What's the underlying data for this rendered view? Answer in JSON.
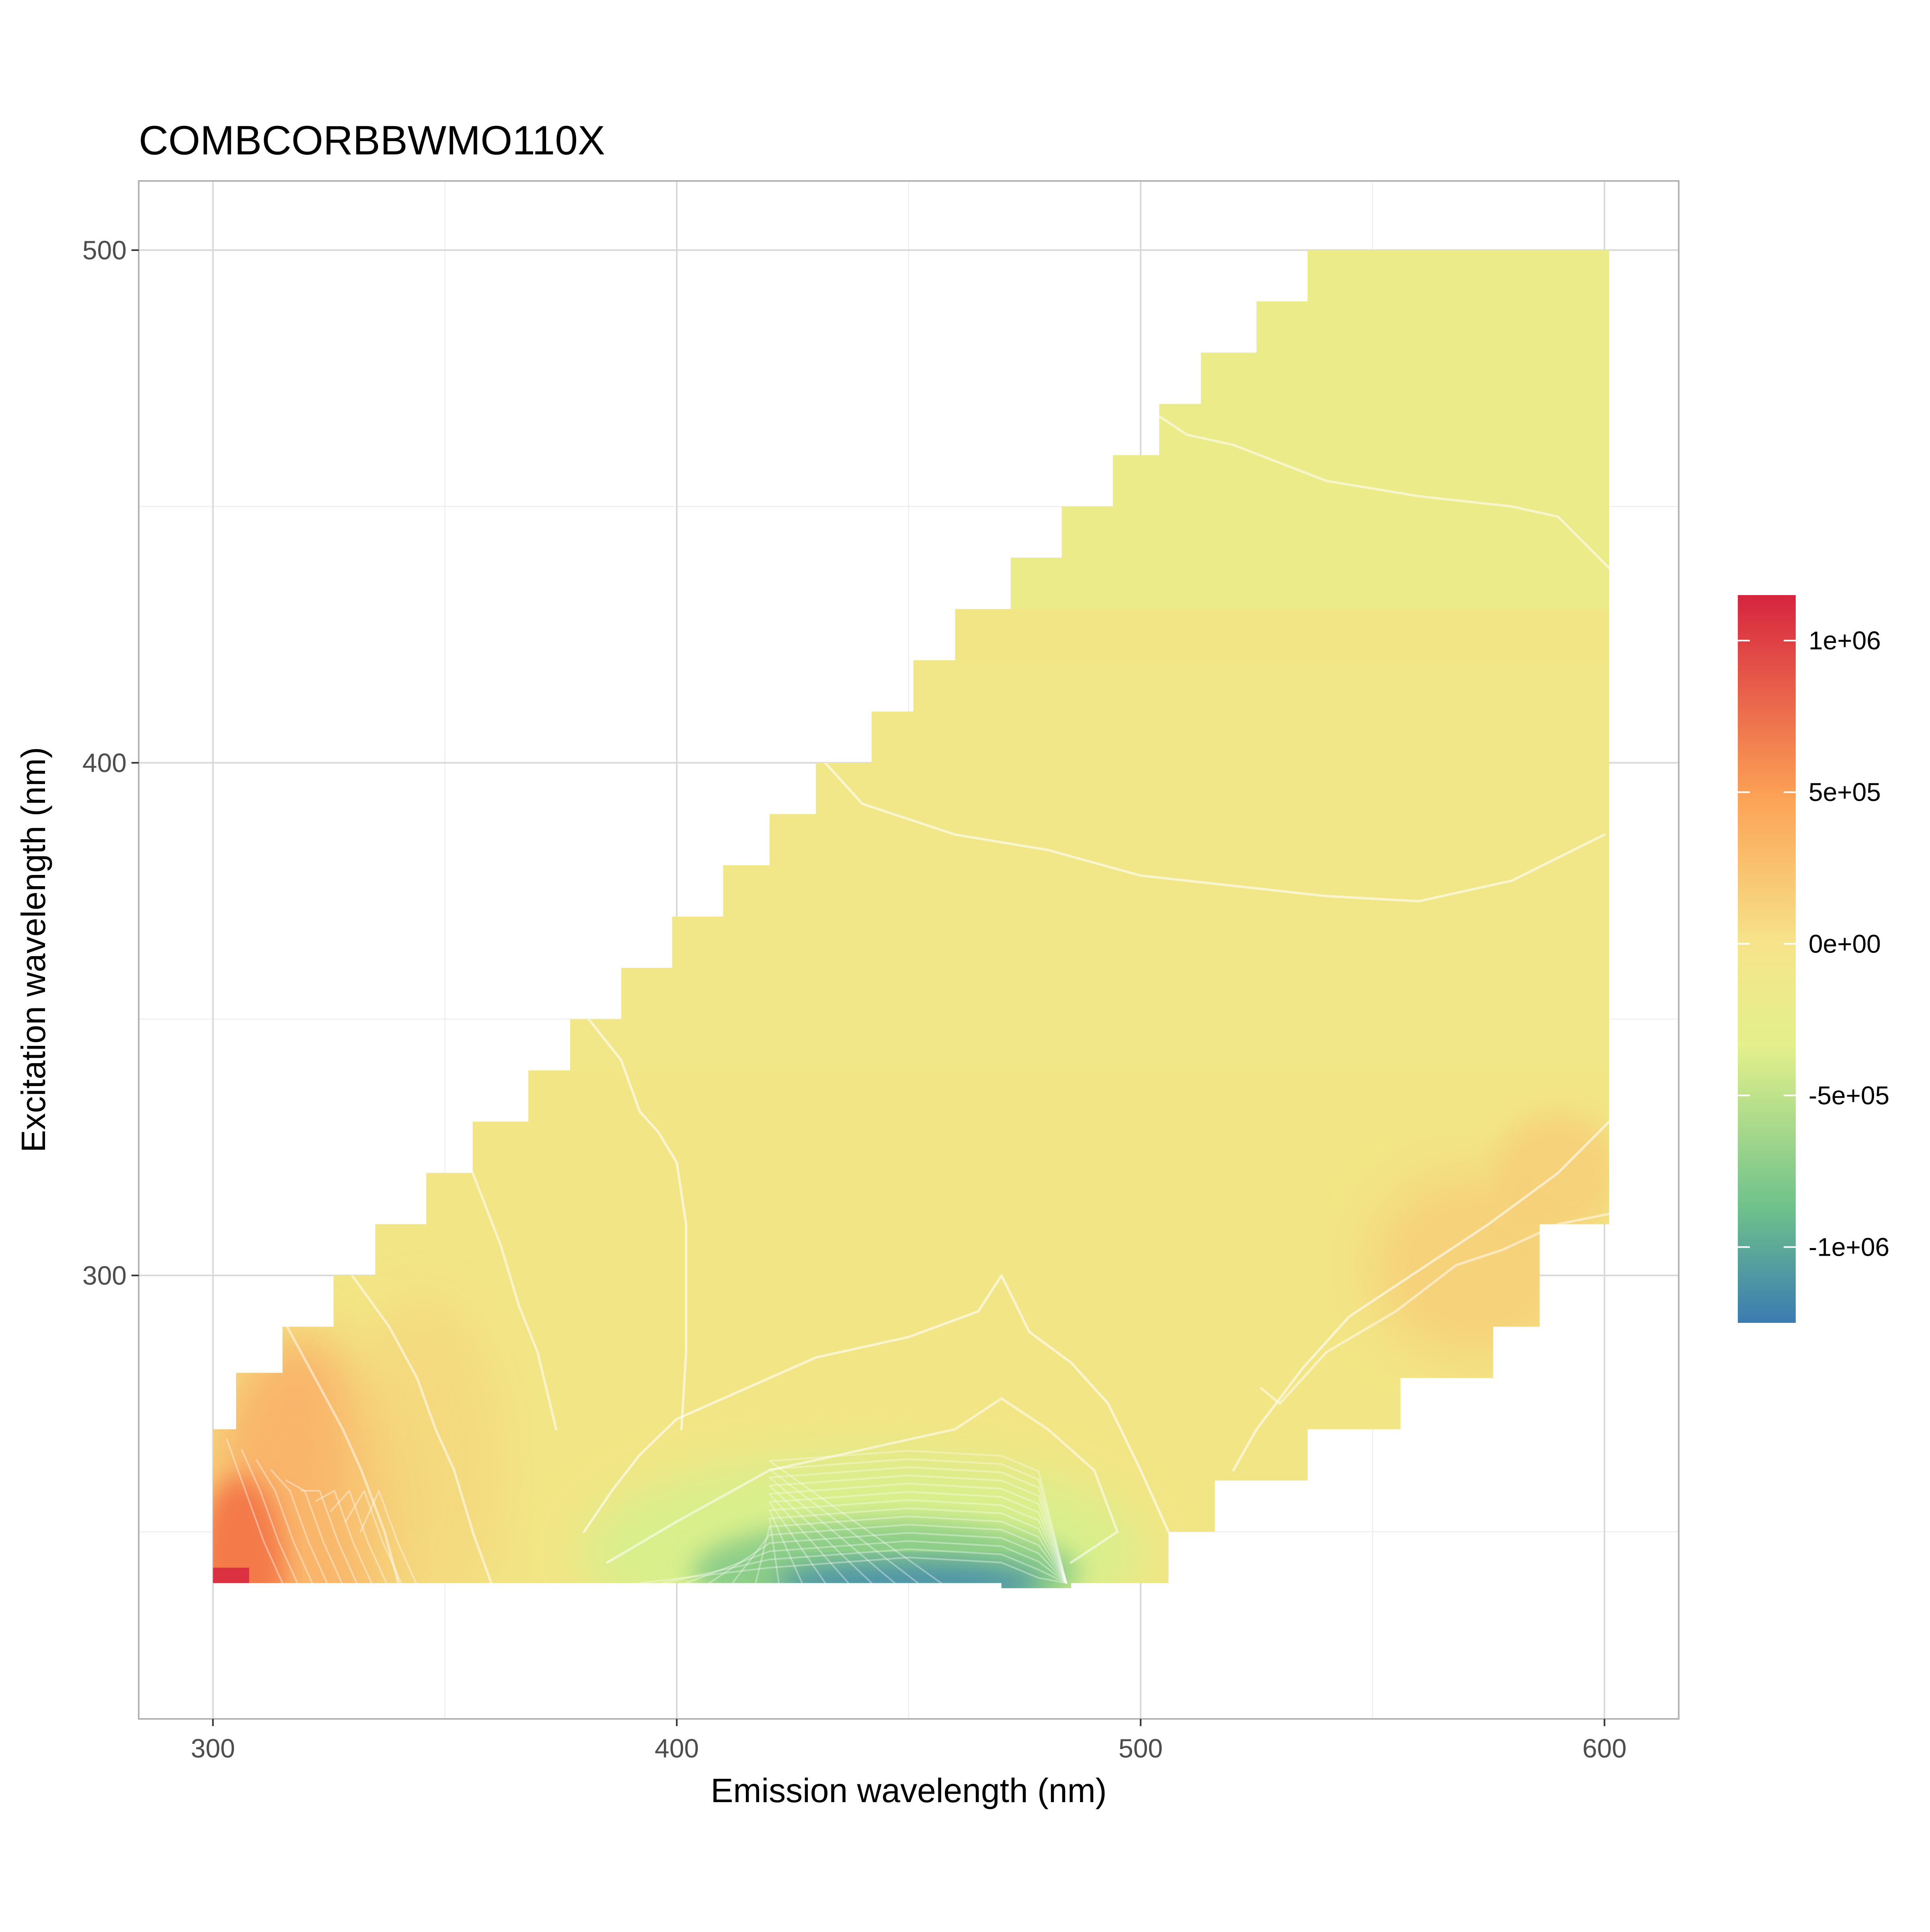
{
  "chart_data": {
    "type": "heatmap",
    "title": "COMBCORBBWMO110X",
    "xlabel": "Emission wavelength (nm)",
    "ylabel": "Excitation wavelength (nm)",
    "xlim": [
      284,
      616
    ],
    "ylim": [
      213.5,
      513.5
    ],
    "x_ticks": [
      300,
      400,
      500,
      600
    ],
    "x_tick_labels": [
      "300",
      "400",
      "500",
      "600"
    ],
    "y_ticks": [
      300,
      400,
      500
    ],
    "y_tick_labels": [
      "300",
      "400",
      "500"
    ],
    "x_minor": [
      350,
      450,
      550
    ],
    "y_minor": [
      250,
      350,
      450
    ],
    "grid": true,
    "legend": {
      "placement": "right",
      "min": -1250000,
      "max": 1150000,
      "ticks": [
        1000000,
        500000,
        0,
        -500000,
        -1000000
      ],
      "tick_labels": [
        "1e+06",
        "5e+05",
        "0e+00",
        "-5e+05",
        "-1e+06"
      ],
      "colors": [
        "#3b7bb2",
        "#6fc28b",
        "#e3f08b",
        "#f6e48b",
        "#fca356",
        "#d6243f"
      ]
    },
    "region_upper_edge": [
      {
        "x_from": 300,
        "x_to": 305,
        "ex": 270
      },
      {
        "x_from": 305,
        "x_to": 315,
        "ex": 281
      },
      {
        "x_from": 315,
        "x_to": 326,
        "ex": 290
      },
      {
        "x_from": 326,
        "x_to": 335,
        "ex": 300
      },
      {
        "x_from": 335,
        "x_to": 346,
        "ex": 310
      },
      {
        "x_from": 346,
        "x_to": 356,
        "ex": 320
      },
      {
        "x_from": 356,
        "x_to": 368,
        "ex": 330
      },
      {
        "x_from": 368,
        "x_to": 377,
        "ex": 340
      },
      {
        "x_from": 377,
        "x_to": 388,
        "ex": 350
      },
      {
        "x_from": 388,
        "x_to": 399,
        "ex": 360
      },
      {
        "x_from": 399,
        "x_to": 410,
        "ex": 370
      },
      {
        "x_from": 410,
        "x_to": 420,
        "ex": 380
      },
      {
        "x_from": 420,
        "x_to": 430,
        "ex": 390
      },
      {
        "x_from": 430,
        "x_to": 442,
        "ex": 400
      },
      {
        "x_from": 442,
        "x_to": 451,
        "ex": 410
      },
      {
        "x_from": 451,
        "x_to": 460,
        "ex": 420
      },
      {
        "x_from": 460,
        "x_to": 472,
        "ex": 430
      },
      {
        "x_from": 472,
        "x_to": 483,
        "ex": 440
      },
      {
        "x_from": 483,
        "x_to": 494,
        "ex": 450
      },
      {
        "x_from": 494,
        "x_to": 504,
        "ex": 460
      },
      {
        "x_from": 504,
        "x_to": 513,
        "ex": 470
      },
      {
        "x_from": 513,
        "x_to": 525,
        "ex": 480
      },
      {
        "x_from": 525,
        "x_to": 536,
        "ex": 490
      },
      {
        "x_from": 536,
        "x_to": 601,
        "ex": 500
      }
    ],
    "region_lower_edge": [
      {
        "x_from": 300,
        "x_to": 470,
        "ex": 240
      },
      {
        "x_from": 470,
        "x_to": 485,
        "ex": 239
      },
      {
        "x_from": 485,
        "x_to": 506,
        "ex": 240
      },
      {
        "x_from": 506,
        "x_to": 516,
        "ex": 250
      },
      {
        "x_from": 516,
        "x_to": 536,
        "ex": 260
      },
      {
        "x_from": 536,
        "x_to": 556,
        "ex": 270
      },
      {
        "x_from": 556,
        "x_to": 576,
        "ex": 280
      },
      {
        "x_from": 576,
        "x_to": 586,
        "ex": 290
      },
      {
        "x_from": 586,
        "x_to": 601,
        "ex": 310
      }
    ],
    "features": [
      {
        "name": "positive ridge",
        "em": 300,
        "ex": 240,
        "value": 1150000
      },
      {
        "name": "negative trough",
        "em": 460,
        "ex": 240,
        "value": -1250000
      },
      {
        "name": "minor positive peak",
        "em": 572,
        "ex": 300,
        "value": 150000
      },
      {
        "name": "mild negative plateau",
        "em": 560,
        "ex": 470,
        "value": -70000
      }
    ]
  }
}
